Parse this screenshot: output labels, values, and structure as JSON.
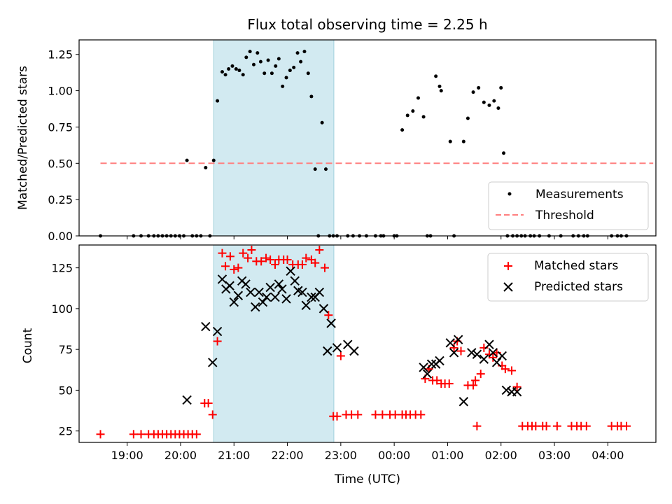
{
  "chart_data": [
    {
      "type": "scatter",
      "title": "Flux total observing time = 2.25 h",
      "xlabel": "",
      "ylabel": "Matched/Predicted stars",
      "ylim": [
        0,
        1.35
      ],
      "xlim_hours": [
        18.1,
        28.9
      ],
      "yticks": [
        "0.00",
        "0.25",
        "0.50",
        "0.75",
        "1.00",
        "1.25"
      ],
      "grid": false,
      "legend_position": "lower right",
      "observing_window_hours": [
        20.62,
        22.87
      ],
      "shade_color": "#add8e6",
      "series": [
        {
          "name": "Measurements",
          "marker": "dot",
          "color": "#000000",
          "x": [
            18.5,
            19.12,
            19.26,
            19.4,
            19.5,
            19.58,
            19.66,
            19.74,
            19.82,
            19.9,
            19.98,
            20.06,
            20.12,
            20.22,
            20.3,
            20.38,
            20.47,
            20.55,
            20.62,
            20.69,
            20.78,
            20.84,
            20.9,
            20.97,
            21.04,
            21.1,
            21.17,
            21.23,
            21.3,
            21.37,
            21.44,
            21.5,
            21.57,
            21.64,
            21.71,
            21.78,
            21.84,
            21.91,
            21.98,
            22.05,
            22.12,
            22.19,
            22.25,
            22.32,
            22.39,
            22.45,
            22.52,
            22.58,
            22.65,
            22.72,
            22.79,
            22.86,
            22.93,
            23.13,
            23.23,
            23.35,
            23.48,
            23.65,
            23.75,
            23.8,
            24.0,
            24.05,
            24.15,
            24.25,
            24.35,
            24.45,
            24.55,
            24.62,
            24.68,
            24.78,
            24.85,
            24.88,
            25.05,
            25.12,
            25.3,
            25.38,
            25.48,
            25.58,
            25.68,
            25.78,
            25.87,
            25.95,
            26.0,
            26.05,
            26.12,
            26.22,
            26.3,
            26.38,
            26.45,
            26.55,
            26.62,
            26.72,
            26.9,
            27.12,
            27.35,
            27.45,
            27.55,
            27.62,
            28.07,
            28.18,
            28.25,
            28.35
          ],
          "y": [
            0,
            0,
            0,
            0,
            0,
            0,
            0,
            0,
            0,
            0,
            0,
            0,
            0.52,
            0,
            0,
            0,
            0.47,
            0,
            0.52,
            0.93,
            1.13,
            1.11,
            1.15,
            1.17,
            1.15,
            1.14,
            1.11,
            1.23,
            1.27,
            1.18,
            1.26,
            1.2,
            1.12,
            1.21,
            1.12,
            1.17,
            1.22,
            1.03,
            1.09,
            1.14,
            1.16,
            1.26,
            1.2,
            1.27,
            1.12,
            0.96,
            0.46,
            0,
            0.78,
            0.46,
            0,
            0,
            0,
            0,
            0,
            0,
            0,
            0,
            0,
            0,
            0,
            0,
            0.73,
            0.83,
            0.86,
            0.95,
            0.82,
            0,
            0,
            1.1,
            1.03,
            1.0,
            0.65,
            0,
            0.65,
            0.81,
            0.99,
            1.02,
            0.92,
            0.9,
            0.93,
            0.88,
            1.02,
            0.57,
            0,
            0,
            0,
            0,
            0,
            0,
            0,
            0,
            0,
            0,
            0,
            0,
            0,
            0,
            0,
            0,
            0,
            0
          ]
        },
        {
          "name": "Threshold",
          "marker": "dashed-line",
          "color": "#ff8080",
          "x": [
            18.5,
            28.85
          ],
          "y": [
            0.5,
            0.5
          ]
        }
      ]
    },
    {
      "type": "scatter",
      "title": "",
      "xlabel": "Time (UTC)",
      "ylabel": "Count",
      "ylim": [
        18,
        139
      ],
      "xlim_hours": [
        18.1,
        28.9
      ],
      "yticks": [
        "25",
        "50",
        "75",
        "100",
        "125"
      ],
      "xticks": [
        "19:00",
        "20:00",
        "21:00",
        "22:00",
        "23:00",
        "00:00",
        "01:00",
        "02:00",
        "03:00",
        "04:00"
      ],
      "grid": false,
      "legend_position": "upper right",
      "observing_window_hours": [
        20.62,
        22.87
      ],
      "shade_color": "#add8e6",
      "series": [
        {
          "name": "Matched stars",
          "marker": "plus",
          "color": "#ff0000",
          "x": [
            18.5,
            19.12,
            19.26,
            19.4,
            19.5,
            19.58,
            19.66,
            19.74,
            19.82,
            19.9,
            19.98,
            20.06,
            20.14,
            20.22,
            20.3,
            20.45,
            20.52,
            20.6,
            20.69,
            20.78,
            20.84,
            20.93,
            21.0,
            21.08,
            21.17,
            21.26,
            21.33,
            21.42,
            21.51,
            21.6,
            21.68,
            21.77,
            21.84,
            21.93,
            22.0,
            22.1,
            22.2,
            22.28,
            22.35,
            22.45,
            22.52,
            22.6,
            22.7,
            22.77,
            22.86,
            22.93,
            23.0,
            23.1,
            23.2,
            23.32,
            23.65,
            23.78,
            23.92,
            24.02,
            24.15,
            24.22,
            24.3,
            24.4,
            24.5,
            24.58,
            24.65,
            24.72,
            24.8,
            24.88,
            24.95,
            25.03,
            25.12,
            25.18,
            25.25,
            25.38,
            25.48,
            25.52,
            25.55,
            25.62,
            25.68,
            25.78,
            25.85,
            25.92,
            26.02,
            26.08,
            26.2,
            26.3,
            26.4,
            26.5,
            26.58,
            26.65,
            26.78,
            26.85,
            27.05,
            27.32,
            27.42,
            27.5,
            27.6,
            28.07,
            28.18,
            28.25,
            28.35
          ],
          "y": [
            23,
            23,
            23,
            23,
            23,
            23,
            23,
            23,
            23,
            23,
            23,
            23,
            23,
            23,
            23,
            42,
            42,
            35,
            80,
            134,
            126,
            132,
            124,
            125,
            134,
            131,
            136,
            129,
            129,
            131,
            130,
            127,
            130,
            130,
            130,
            127,
            127,
            127,
            131,
            130,
            128,
            136,
            125,
            96,
            34,
            34,
            71,
            35,
            35,
            35,
            35,
            35,
            35,
            35,
            35,
            35,
            35,
            35,
            35,
            57,
            63,
            56,
            56,
            54,
            54,
            54,
            76,
            80,
            74,
            53,
            53,
            56,
            28,
            60,
            76,
            72,
            70,
            73,
            65,
            63,
            62,
            52,
            28,
            28,
            28,
            28,
            28,
            28,
            28,
            28,
            28,
            28,
            28,
            28,
            28,
            28,
            28
          ]
        },
        {
          "name": "Predicted stars",
          "marker": "x",
          "color": "#000000",
          "x": [
            20.12,
            20.47,
            20.6,
            20.69,
            20.78,
            20.85,
            20.92,
            21.0,
            21.08,
            21.15,
            21.22,
            21.31,
            21.4,
            21.47,
            21.54,
            21.61,
            21.68,
            21.77,
            21.84,
            21.9,
            21.98,
            22.06,
            22.14,
            22.2,
            22.28,
            22.35,
            22.45,
            22.52,
            22.6,
            22.68,
            22.75,
            22.82,
            22.93,
            23.13,
            23.25,
            24.55,
            24.62,
            24.7,
            24.78,
            24.85,
            25.05,
            25.12,
            25.2,
            25.3,
            25.45,
            25.55,
            25.68,
            25.78,
            25.85,
            25.92,
            26.02,
            26.1,
            26.2,
            26.3
          ],
          "y": [
            44,
            89,
            67,
            86,
            118,
            112,
            114,
            104,
            108,
            117,
            115,
            110,
            101,
            110,
            104,
            107,
            113,
            107,
            115,
            112,
            106,
            123,
            117,
            111,
            110,
            102,
            107,
            107,
            110,
            100,
            74,
            91,
            76,
            78,
            74,
            64,
            60,
            66,
            66,
            68,
            79,
            73,
            81,
            43,
            73,
            72,
            69,
            78,
            73,
            67,
            71,
            50,
            49,
            49
          ]
        }
      ]
    }
  ]
}
